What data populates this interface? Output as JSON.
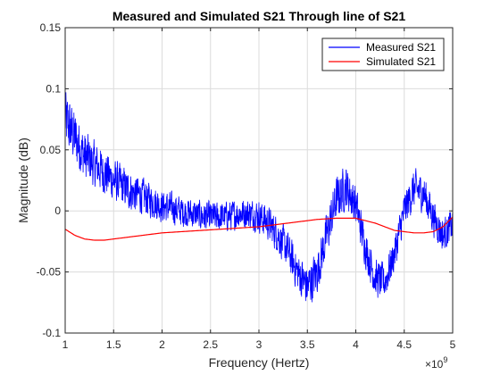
{
  "chart_data": {
    "type": "line",
    "title": "Measured and Simulated S21 Through line of S21",
    "xlabel": "Frequency (Hertz)",
    "ylabel": "Magnitude (dB)",
    "x_exponent_base": "×10",
    "x_exponent_power": "9",
    "xlim": [
      1,
      5
    ],
    "ylim": [
      -0.1,
      0.15
    ],
    "x_ticks": [
      1,
      1.5,
      2,
      2.5,
      3,
      3.5,
      4,
      4.5,
      5
    ],
    "x_tick_labels": [
      "1",
      "1.5",
      "2",
      "2.5",
      "3",
      "3.5",
      "4",
      "4.5",
      "5"
    ],
    "y_ticks": [
      -0.1,
      -0.05,
      0,
      0.05,
      0.1,
      0.15
    ],
    "y_tick_labels": [
      "-0.1",
      "-0.05",
      "0",
      "0.05",
      "0.1",
      "0.15"
    ],
    "grid": true,
    "legend_position": "top-right",
    "series": [
      {
        "name": "Measured S21",
        "color": "#0000ff",
        "style": "noisy",
        "x": [
          1.0,
          1.1,
          1.2,
          1.3,
          1.4,
          1.5,
          1.6,
          1.7,
          1.8,
          1.9,
          2.0,
          2.1,
          2.2,
          2.3,
          2.4,
          2.5,
          2.6,
          2.7,
          2.8,
          2.9,
          3.0,
          3.1,
          3.2,
          3.3,
          3.4,
          3.5,
          3.6,
          3.7,
          3.8,
          3.9,
          4.0,
          4.1,
          4.2,
          4.3,
          4.4,
          4.5,
          4.6,
          4.7,
          4.8,
          4.9,
          5.0
        ],
        "y_mid": [
          0.075,
          0.06,
          0.045,
          0.038,
          0.032,
          0.025,
          0.02,
          0.015,
          0.012,
          0.008,
          0.004,
          0.002,
          0.0,
          -0.002,
          -0.004,
          -0.005,
          -0.005,
          -0.004,
          -0.002,
          -0.002,
          -0.004,
          -0.01,
          -0.02,
          -0.033,
          -0.05,
          -0.062,
          -0.05,
          -0.02,
          0.01,
          0.02,
          0.005,
          -0.03,
          -0.055,
          -0.058,
          -0.035,
          0.0,
          0.018,
          0.015,
          -0.005,
          -0.02,
          -0.012
        ],
        "y_amp": [
          0.03,
          0.027,
          0.025,
          0.023,
          0.022,
          0.021,
          0.02,
          0.019,
          0.018,
          0.017,
          0.016,
          0.016,
          0.015,
          0.015,
          0.015,
          0.015,
          0.015,
          0.015,
          0.015,
          0.015,
          0.016,
          0.017,
          0.018,
          0.019,
          0.02,
          0.022,
          0.022,
          0.022,
          0.022,
          0.022,
          0.02,
          0.019,
          0.019,
          0.018,
          0.018,
          0.019,
          0.019,
          0.019,
          0.018,
          0.017,
          0.016
        ]
      },
      {
        "name": "Simulated S21",
        "color": "#ff0000",
        "style": "smooth",
        "x": [
          1.0,
          1.1,
          1.2,
          1.3,
          1.4,
          1.5,
          1.6,
          1.8,
          2.0,
          2.2,
          2.4,
          2.6,
          2.8,
          3.0,
          3.2,
          3.4,
          3.6,
          3.8,
          4.0,
          4.1,
          4.2,
          4.3,
          4.4,
          4.5,
          4.6,
          4.7,
          4.8,
          4.9,
          5.0
        ],
        "y": [
          -0.015,
          -0.02,
          -0.023,
          -0.024,
          -0.024,
          -0.023,
          -0.022,
          -0.02,
          -0.018,
          -0.017,
          -0.016,
          -0.015,
          -0.014,
          -0.013,
          -0.011,
          -0.009,
          -0.007,
          -0.006,
          -0.006,
          -0.008,
          -0.01,
          -0.013,
          -0.016,
          -0.017,
          -0.018,
          -0.018,
          -0.017,
          -0.013,
          -0.005
        ]
      }
    ]
  }
}
